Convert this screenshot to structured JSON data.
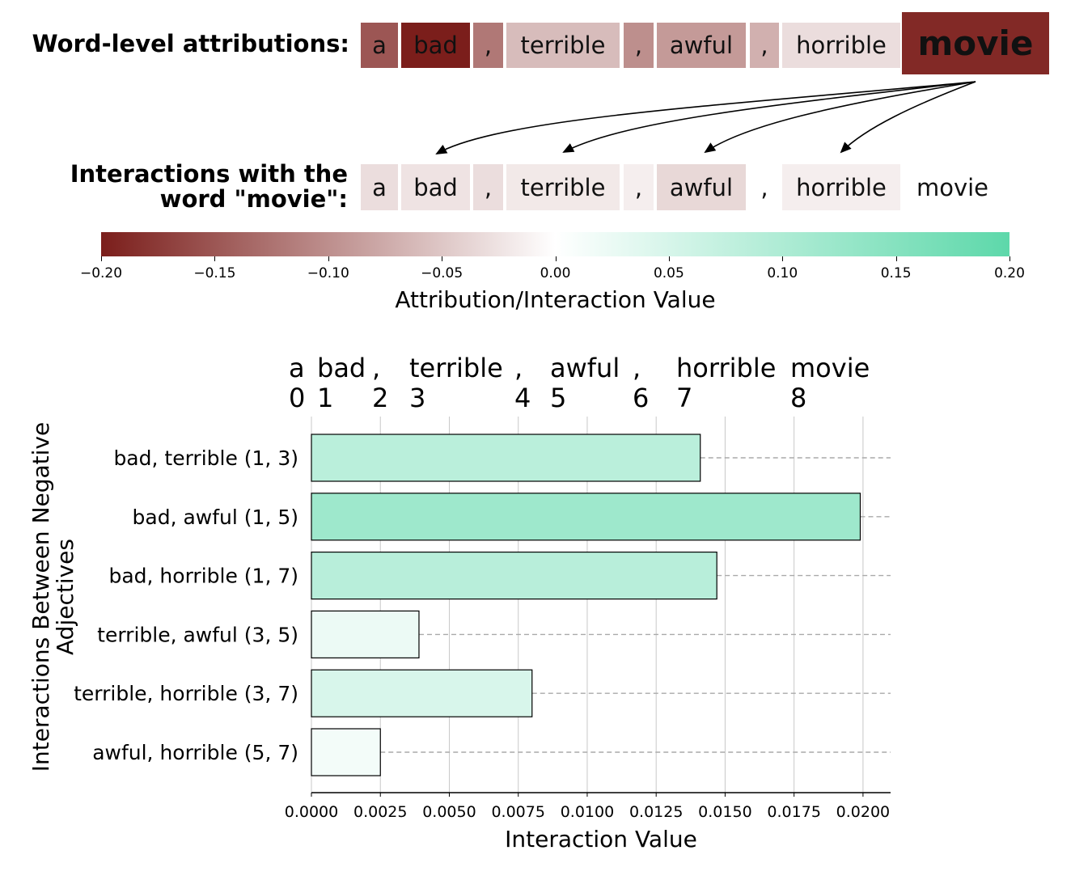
{
  "attributions": {
    "label": "Word-level attributions:",
    "tokens": [
      {
        "text": "a",
        "value": -0.15
      },
      {
        "text": "bad",
        "value": -0.2
      },
      {
        "text": ",",
        "value": -0.12
      },
      {
        "text": "terrible",
        "value": -0.06
      },
      {
        "text": ",",
        "value": -0.1
      },
      {
        "text": "awful",
        "value": -0.09
      },
      {
        "text": ",",
        "value": -0.07
      },
      {
        "text": "horrible",
        "value": -0.03
      },
      {
        "text": "movie",
        "value": -0.19
      }
    ]
  },
  "interactions": {
    "label_line1": "Interactions with the",
    "label_line2": "word \"movie\":",
    "tokens": [
      {
        "text": "a",
        "value": -0.03
      },
      {
        "text": "bad",
        "value": -0.025
      },
      {
        "text": ",",
        "value": -0.03
      },
      {
        "text": "terrible",
        "value": -0.02
      },
      {
        "text": ",",
        "value": -0.015
      },
      {
        "text": "awful",
        "value": -0.035
      },
      {
        "text": ",",
        "value": 0.0
      },
      {
        "text": "horrible",
        "value": -0.015
      },
      {
        "text": "movie",
        "value": null
      }
    ]
  },
  "colorbar": {
    "title": "Attribution/Interaction Value",
    "ticks": [
      "−0.20",
      "−0.15",
      "−0.10",
      "−0.05",
      "0.00",
      "0.05",
      "0.10",
      "0.15",
      "0.20"
    ],
    "range": [
      -0.2,
      0.2
    ],
    "neg_color": "#7b1e1b",
    "mid_color": "#ffffff",
    "pos_color": "#5dd8aa"
  },
  "chart_data": {
    "type": "bar",
    "orientation": "horizontal",
    "categories": [
      "bad, terrible (1, 3)",
      "bad, awful (1, 5)",
      "bad, horrible (1, 7)",
      "terrible, awful (3, 5)",
      "terrible, horrible (3, 7)",
      "awful, horrible (5, 7)"
    ],
    "values": [
      0.0141,
      0.0199,
      0.0147,
      0.0039,
      0.008,
      0.0025
    ],
    "xlabel": "Interaction Value",
    "ylabel_line1": "Interactions Between Negative",
    "ylabel_line2": "Adjectives",
    "xlim": [
      0,
      0.021
    ],
    "xticks": [
      "0.0000",
      "0.0025",
      "0.0050",
      "0.0075",
      "0.0100",
      "0.0125",
      "0.0150",
      "0.0175",
      "0.0200"
    ],
    "grid": true,
    "top_axis": {
      "words": [
        {
          "text": "a",
          "pos": 0
        },
        {
          "text": "bad",
          "pos": 1
        },
        {
          "text": ",",
          "pos": 2
        },
        {
          "text": "terrible",
          "pos": 3
        },
        {
          "text": ",",
          "pos": 4
        },
        {
          "text": "awful",
          "pos": 5
        },
        {
          "text": ",",
          "pos": 6
        },
        {
          "text": "horrible",
          "pos": 7
        },
        {
          "text": "movie",
          "pos": 8
        }
      ],
      "indices": [
        "0",
        "1",
        "2",
        "3",
        "4",
        "5",
        "6",
        "7",
        "8"
      ]
    }
  }
}
